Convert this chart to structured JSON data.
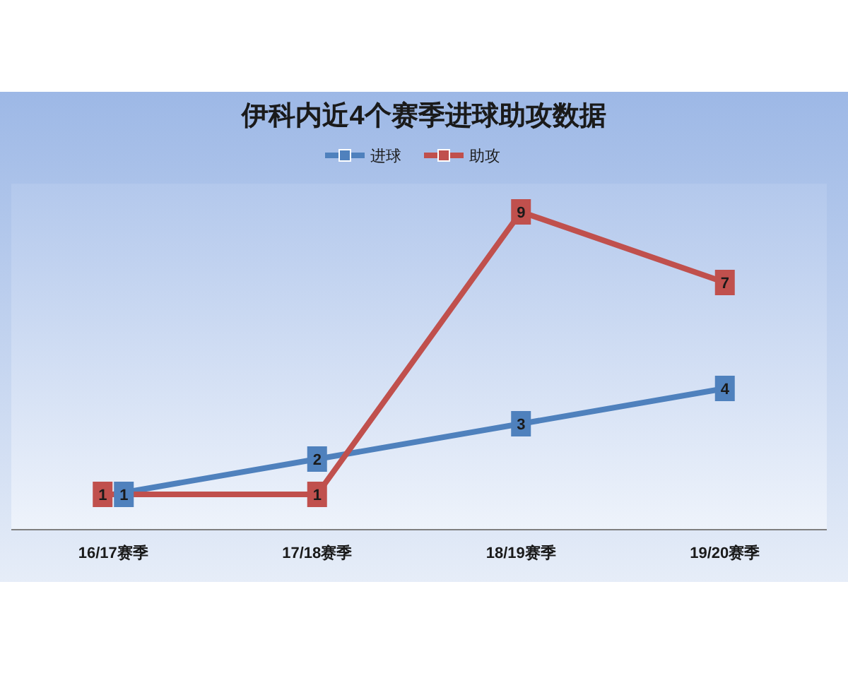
{
  "chart_data": {
    "type": "line",
    "title": "伊科内近4个赛季进球助攻数据",
    "categories": [
      "16/17赛季",
      "17/18赛季",
      "18/19赛季",
      "19/20赛季"
    ],
    "series": [
      {
        "name": "进球",
        "color": "#4f81bd",
        "marker": "square",
        "values": [
          1,
          2,
          3,
          4
        ]
      },
      {
        "name": "助攻",
        "color": "#c0504d",
        "marker": "square",
        "values": [
          1,
          1,
          9,
          7
        ]
      }
    ],
    "data_labels": true,
    "legend": "top",
    "grid": false
  }
}
